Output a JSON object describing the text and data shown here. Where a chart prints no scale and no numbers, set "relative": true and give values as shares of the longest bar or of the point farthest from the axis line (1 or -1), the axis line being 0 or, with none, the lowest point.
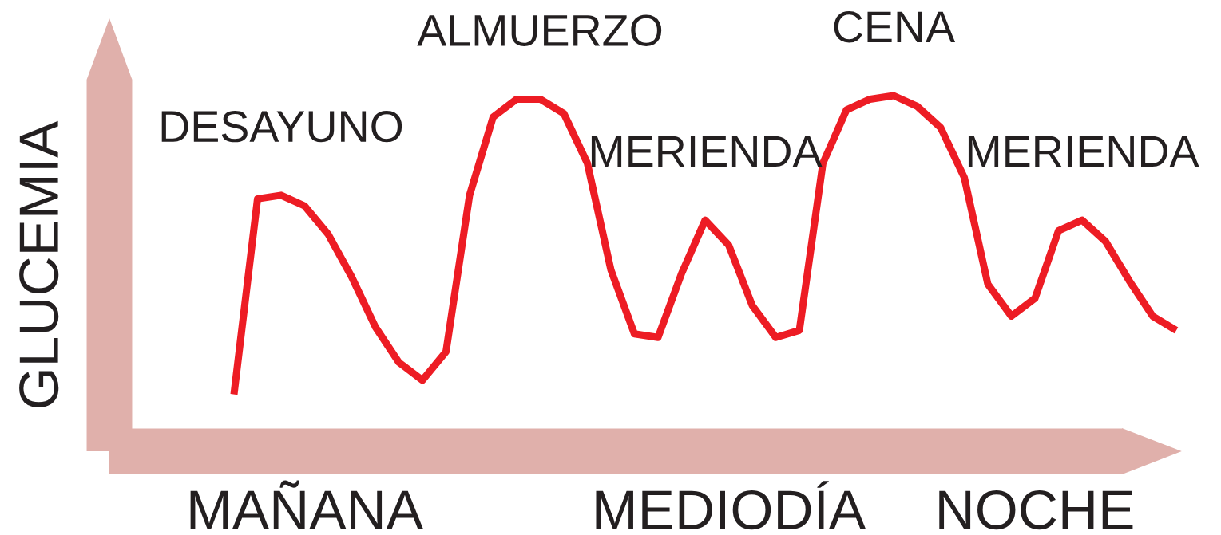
{
  "chart_data": {
    "type": "line",
    "relative": true,
    "ylabel": "GLUCEMIA",
    "tick_labels": "x",
    "categories": [
      null,
      null,
      null,
      "MAÑANA",
      null,
      null,
      null,
      null,
      null,
      null,
      null,
      null,
      null,
      null,
      null,
      null,
      null,
      null,
      null,
      null,
      null,
      "MEDIODÍA",
      null,
      null,
      null,
      null,
      null,
      null,
      null,
      null,
      null,
      null,
      null,
      null,
      "NOCHE",
      null,
      null,
      null,
      null,
      null,
      null
    ],
    "series": [
      {
        "color": "#ed1c24",
        "values": [
          0.16,
          0.71,
          0.72,
          0.69,
          0.61,
          0.49,
          0.35,
          0.25,
          0.2,
          0.28,
          0.72,
          0.94,
          0.99,
          0.99,
          0.95,
          0.81,
          0.51,
          0.33,
          0.32,
          0.5,
          0.65,
          0.58,
          0.41,
          0.32,
          0.34,
          0.81,
          0.96,
          0.99,
          1.0,
          0.97,
          0.91,
          0.77,
          0.47,
          0.38,
          0.43,
          0.62,
          0.65,
          0.59,
          0.48,
          0.38,
          0.34
        ]
      }
    ],
    "annotations": [
      "DESAYUNO",
      "ALMUERZO",
      "MERIENDA",
      "CENA",
      "MERIENDA"
    ]
  }
}
